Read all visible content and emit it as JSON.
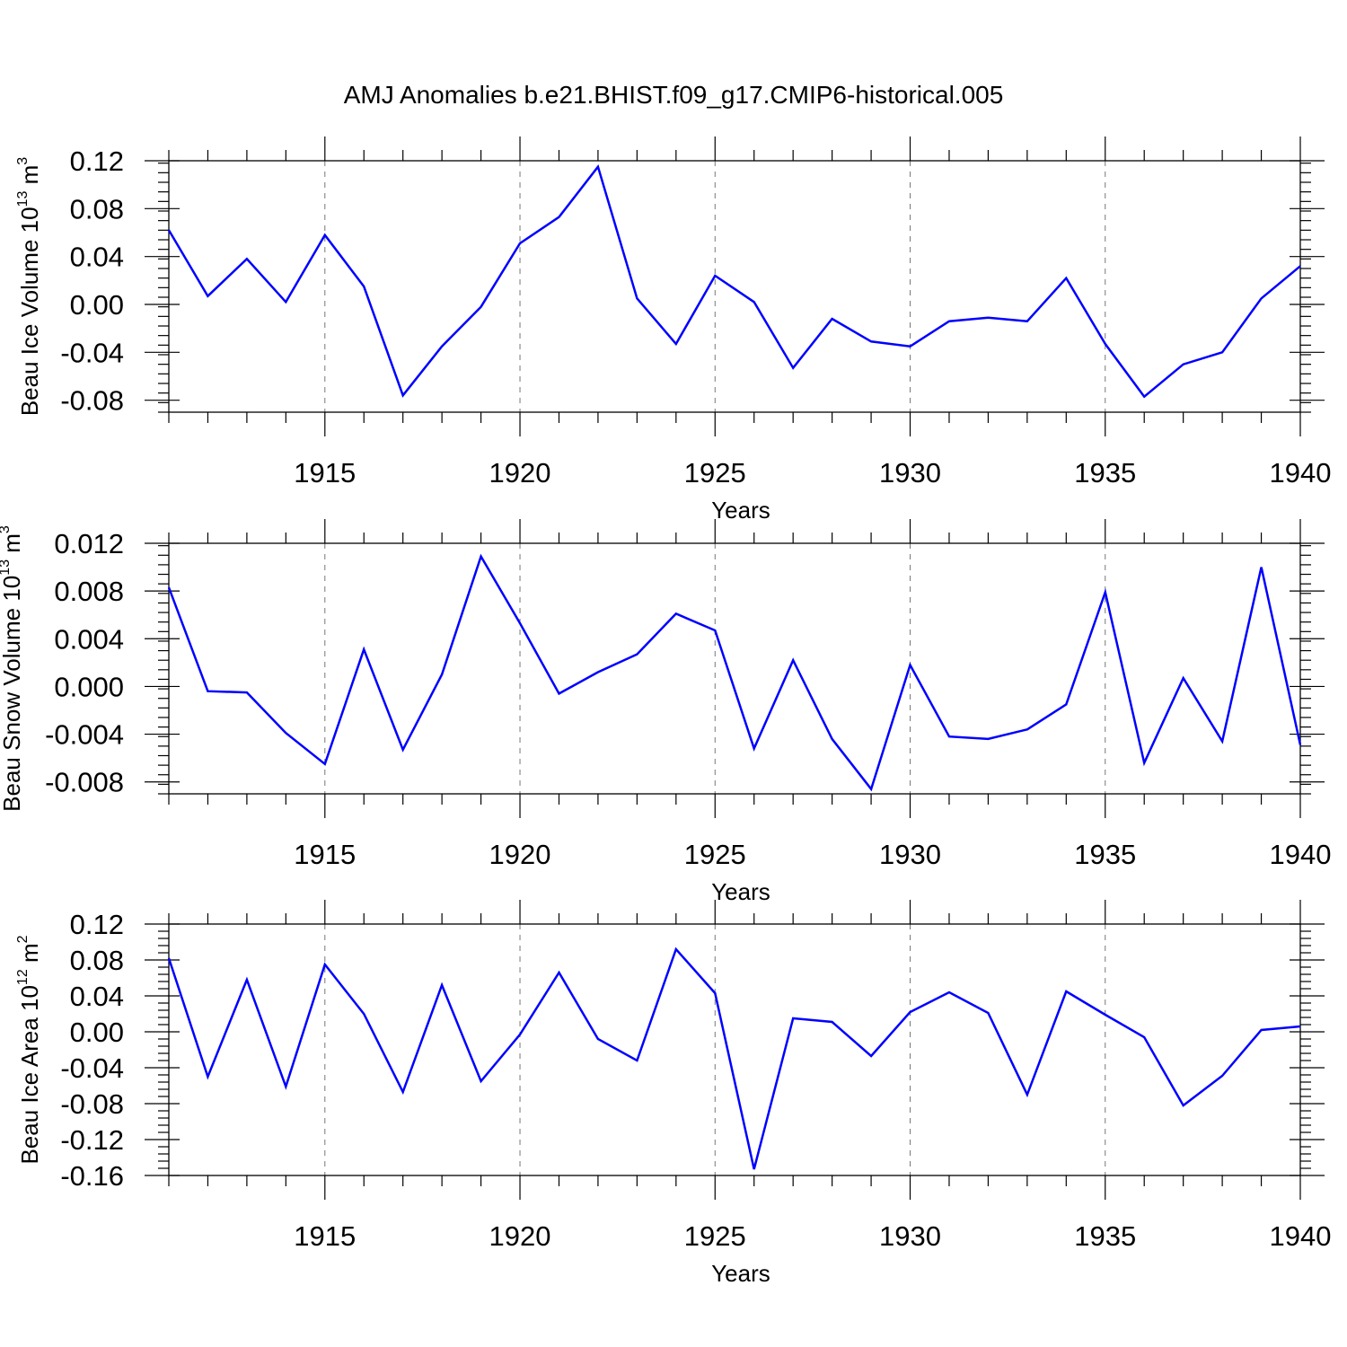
{
  "figure": {
    "title": "AMJ Anomalies b.e21.BHIST.f09_g17.CMIP6-historical.005"
  },
  "chart_data": [
    {
      "type": "line",
      "ylabel_main": "Beau Ice Volume 10",
      "ylabel_exp": "13",
      "ylabel_unit": " m",
      "ylabel_unit_exp": "3",
      "xlabel": "Years",
      "xlim": [
        1911,
        1940
      ],
      "ylim": [
        -0.09,
        0.12
      ],
      "yticks": [
        -0.08,
        -0.04,
        0.0,
        0.04,
        0.08,
        0.12
      ],
      "ytick_labels": [
        "-0.08",
        "-0.04",
        "0.00",
        "0.04",
        "0.08",
        "0.12"
      ],
      "xticks": [
        1915,
        1920,
        1925,
        1930,
        1935,
        1940
      ],
      "xtick_labels": [
        "1915",
        "1920",
        "1925",
        "1930",
        "1935",
        "1940"
      ],
      "grid": "vertical dashed at major x ticks",
      "x": [
        1911,
        1912,
        1913,
        1914,
        1915,
        1916,
        1917,
        1918,
        1919,
        1920,
        1921,
        1922,
        1923,
        1924,
        1925,
        1926,
        1927,
        1928,
        1929,
        1930,
        1931,
        1932,
        1933,
        1934,
        1935,
        1936,
        1937,
        1938,
        1939,
        1940
      ],
      "series": [
        {
          "color": "#0000ff",
          "values": [
            0.062,
            0.007,
            0.038,
            0.002,
            0.058,
            0.015,
            -0.076,
            -0.035,
            -0.002,
            0.051,
            0.073,
            0.115,
            0.005,
            -0.033,
            0.024,
            0.002,
            -0.053,
            -0.012,
            -0.031,
            -0.035,
            -0.014,
            -0.011,
            -0.014,
            0.022,
            -0.033,
            -0.077,
            -0.05,
            -0.04,
            0.005,
            0.032
          ]
        }
      ]
    },
    {
      "type": "line",
      "ylabel_main": "Beau Snow Volume 10",
      "ylabel_exp": "13",
      "ylabel_unit": " m",
      "ylabel_unit_exp": "3",
      "xlabel": "Years",
      "xlim": [
        1911,
        1940
      ],
      "ylim": [
        -0.009,
        0.012
      ],
      "yticks": [
        -0.008,
        -0.004,
        0.0,
        0.004,
        0.008,
        0.012
      ],
      "ytick_labels": [
        "-0.008",
        "-0.004",
        "0.000",
        "0.004",
        "0.008",
        "0.012"
      ],
      "xticks": [
        1915,
        1920,
        1925,
        1930,
        1935,
        1940
      ],
      "xtick_labels": [
        "1915",
        "1920",
        "1925",
        "1930",
        "1935",
        "1940"
      ],
      "grid": "vertical dashed at major x ticks",
      "x": [
        1911,
        1912,
        1913,
        1914,
        1915,
        1916,
        1917,
        1918,
        1919,
        1920,
        1921,
        1922,
        1923,
        1924,
        1925,
        1926,
        1927,
        1928,
        1929,
        1930,
        1931,
        1932,
        1933,
        1934,
        1935,
        1936,
        1937,
        1938,
        1939,
        1940
      ],
      "series": [
        {
          "color": "#0000ff",
          "values": [
            0.0083,
            -0.0004,
            -0.0005,
            -0.0039,
            -0.0065,
            0.0031,
            -0.0053,
            0.001,
            0.0109,
            0.0053,
            -0.0006,
            0.0012,
            0.0027,
            0.0061,
            0.0047,
            -0.0052,
            0.0022,
            -0.0044,
            -0.0086,
            0.0018,
            -0.0042,
            -0.0044,
            -0.0036,
            -0.0015,
            0.0079,
            -0.0064,
            0.0007,
            -0.0046,
            0.01,
            -0.0049
          ]
        }
      ]
    },
    {
      "type": "line",
      "ylabel_main": "Beau Ice Area 10",
      "ylabel_exp": "12",
      "ylabel_unit": " m",
      "ylabel_unit_exp": "2",
      "xlabel": "Years",
      "xlim": [
        1911,
        1940
      ],
      "ylim": [
        -0.16,
        0.12
      ],
      "yticks": [
        -0.16,
        -0.12,
        -0.08,
        -0.04,
        0.0,
        0.04,
        0.08,
        0.12
      ],
      "ytick_labels": [
        "-0.16",
        "-0.12",
        "-0.08",
        "-0.04",
        "0.00",
        "0.04",
        "0.08",
        "0.12"
      ],
      "xticks": [
        1915,
        1920,
        1925,
        1930,
        1935,
        1940
      ],
      "xtick_labels": [
        "1915",
        "1920",
        "1925",
        "1930",
        "1935",
        "1940"
      ],
      "grid": "vertical dashed at major x ticks",
      "x": [
        1911,
        1912,
        1913,
        1914,
        1915,
        1916,
        1917,
        1918,
        1919,
        1920,
        1921,
        1922,
        1923,
        1924,
        1925,
        1926,
        1927,
        1928,
        1929,
        1930,
        1931,
        1932,
        1933,
        1934,
        1935,
        1936,
        1937,
        1938,
        1939,
        1940
      ],
      "series": [
        {
          "color": "#0000ff",
          "values": [
            0.082,
            -0.05,
            0.058,
            -0.061,
            0.075,
            0.02,
            -0.067,
            0.052,
            -0.055,
            -0.003,
            0.066,
            -0.008,
            -0.032,
            0.092,
            0.043,
            -0.153,
            0.015,
            0.011,
            -0.027,
            0.022,
            0.044,
            0.021,
            -0.07,
            0.045,
            0.019,
            -0.006,
            -0.082,
            -0.049,
            0.002,
            0.006
          ]
        }
      ]
    }
  ]
}
